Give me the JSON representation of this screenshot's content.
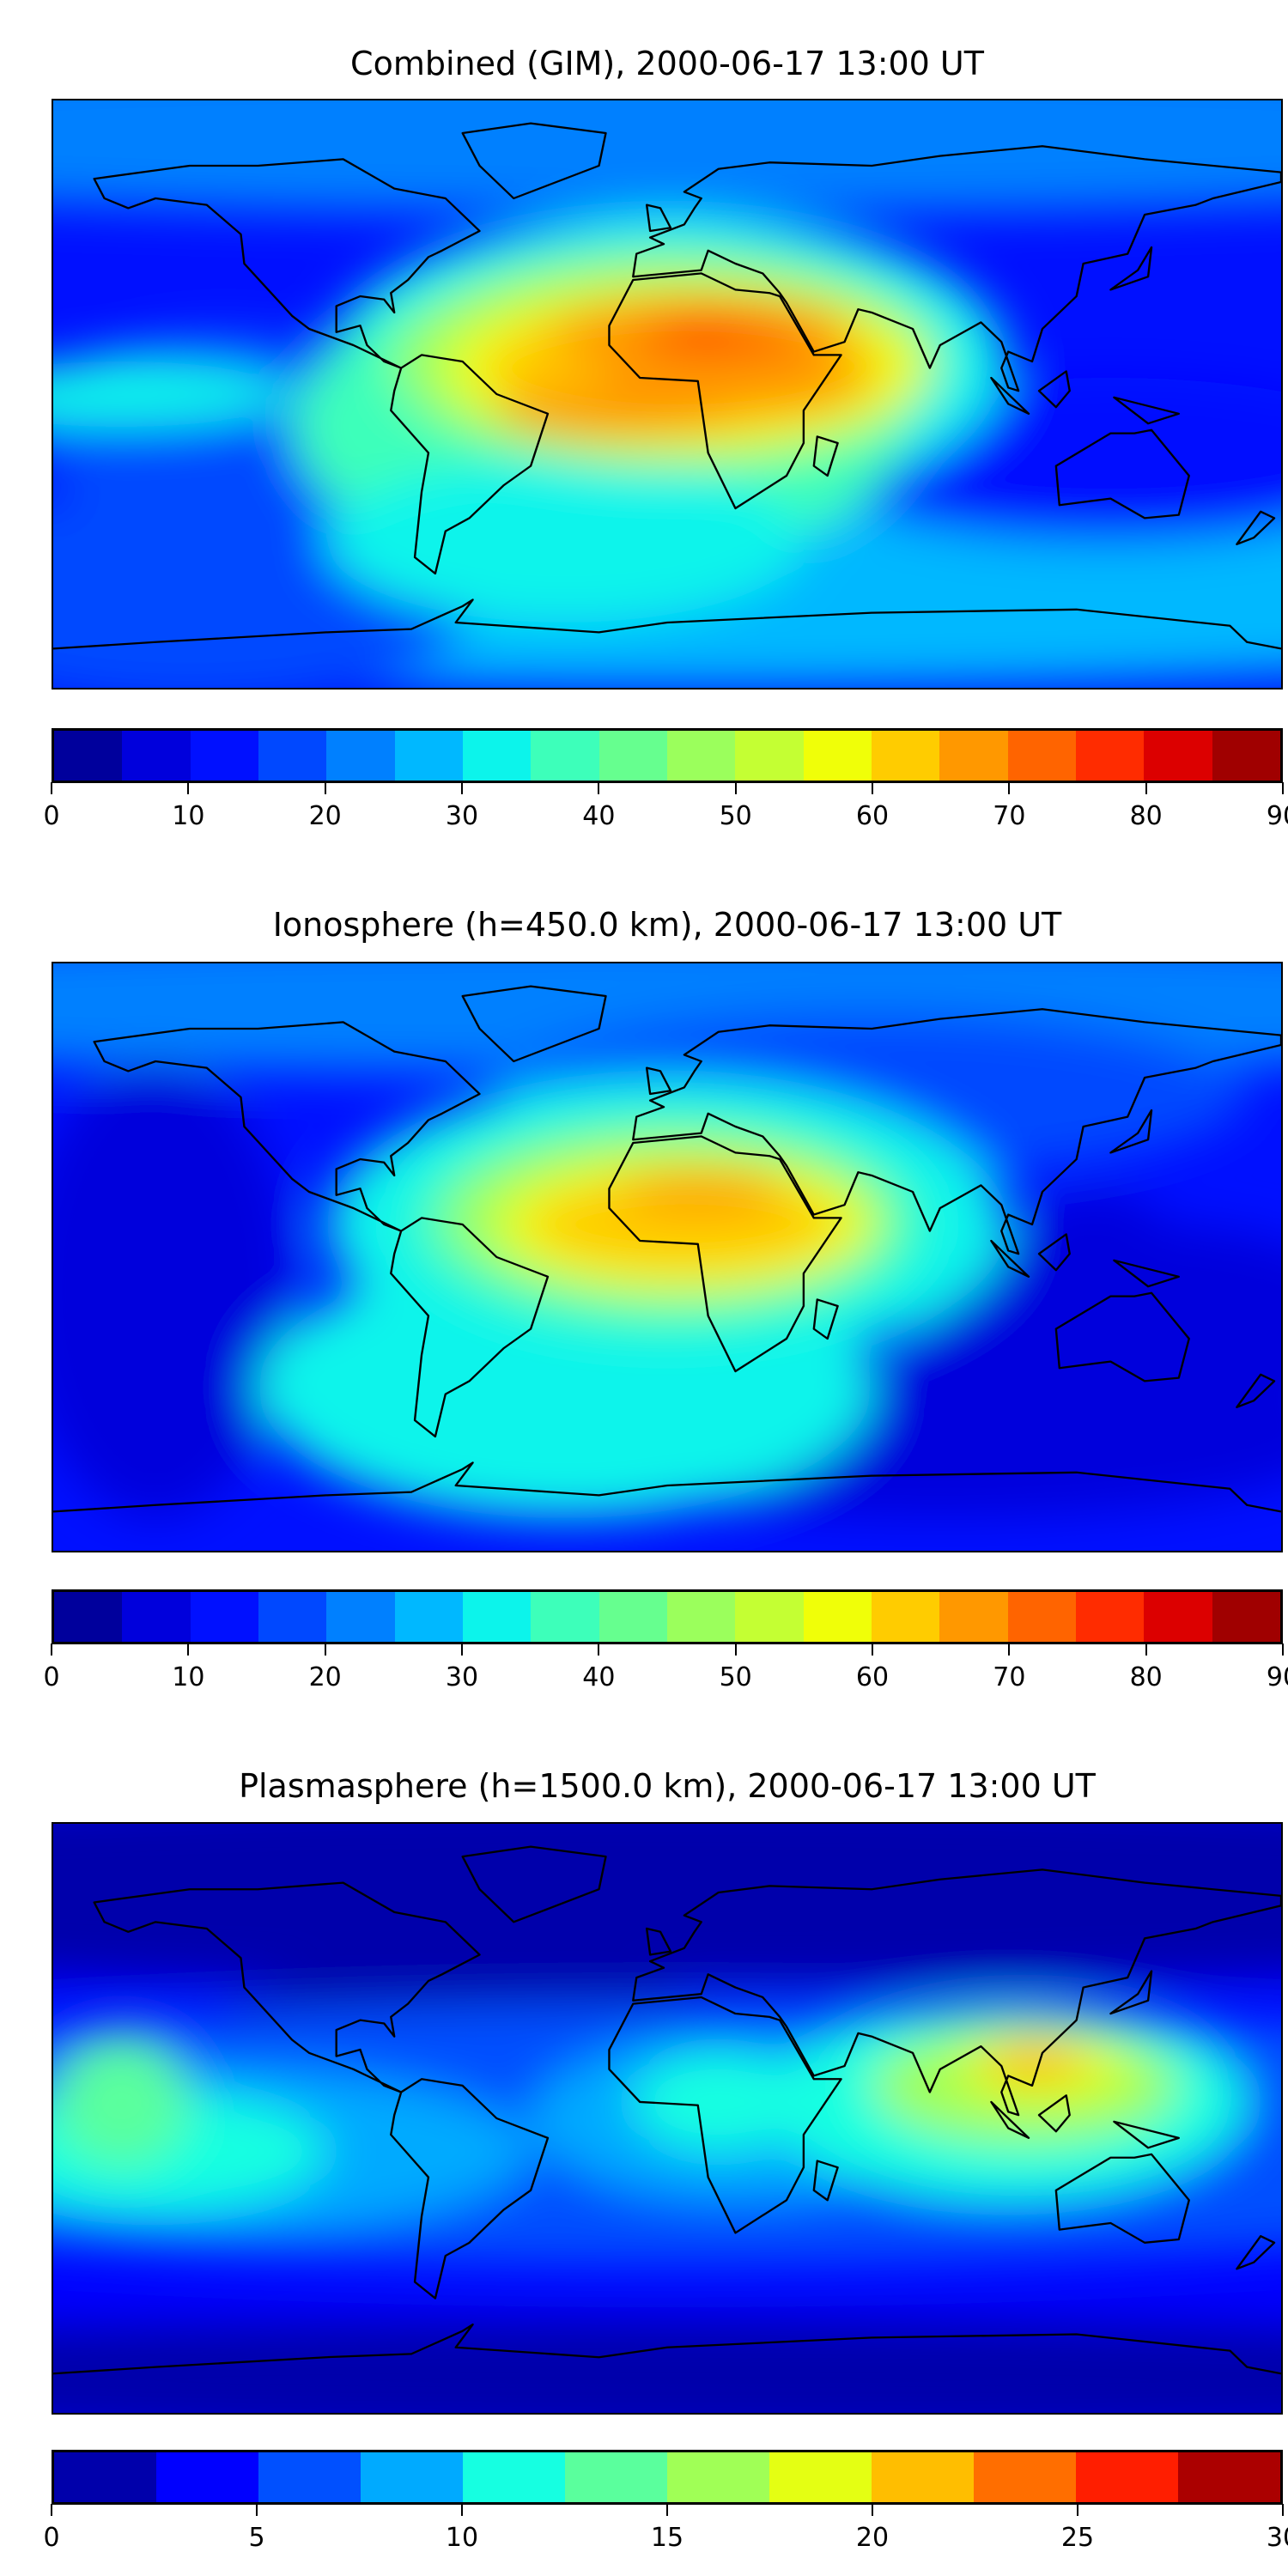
{
  "chart_data": [
    {
      "type": "heatmap",
      "title": "Combined (GIM), 2000-06-17 13:00 UT",
      "projection": "equirectangular world map with coastlines",
      "colorbar": {
        "range": [
          0,
          90
        ],
        "ticks": [
          0,
          10,
          20,
          30,
          40,
          50,
          60,
          70,
          80,
          90
        ],
        "levels": [
          0,
          5,
          10,
          15,
          20,
          25,
          30,
          35,
          40,
          45,
          50,
          55,
          60,
          65,
          70,
          75,
          80,
          85,
          90
        ],
        "colors": [
          "#00009c",
          "#0000dc",
          "#0010ff",
          "#0048ff",
          "#0080ff",
          "#00b8ff",
          "#0cf4eb",
          "#3dffba",
          "#66ff8f",
          "#9bff5c",
          "#c4ff33",
          "#f0ff08",
          "#ffcc00",
          "#ff9800",
          "#ff6400",
          "#ff2c00",
          "#dc0000",
          "#a00000"
        ]
      },
      "features": {
        "max_region": "North Africa / Arabia, ~80",
        "min_region": "South Pacific / Australia, ~10"
      }
    },
    {
      "type": "heatmap",
      "title": "Ionosphere  (h=450.0 km), 2000-06-17 13:00 UT",
      "projection": "equirectangular world map with coastlines",
      "colorbar": {
        "range": [
          0,
          90
        ],
        "ticks": [
          0,
          10,
          20,
          30,
          40,
          50,
          60,
          70,
          80,
          90
        ],
        "levels": [
          0,
          5,
          10,
          15,
          20,
          25,
          30,
          35,
          40,
          45,
          50,
          55,
          60,
          65,
          70,
          75,
          80,
          85,
          90
        ],
        "colors": [
          "#00009c",
          "#0000dc",
          "#0010ff",
          "#0048ff",
          "#0080ff",
          "#00b8ff",
          "#0cf4eb",
          "#3dffba",
          "#66ff8f",
          "#9bff5c",
          "#c4ff33",
          "#f0ff08",
          "#ffcc00",
          "#ff9800",
          "#ff6400",
          "#ff2c00",
          "#dc0000",
          "#a00000"
        ]
      },
      "features": {
        "max_region": "Africa, ~65",
        "min_region": "Pacific / Australia, ~5"
      }
    },
    {
      "type": "heatmap",
      "title": "Plasmasphere (h=1500.0 km), 2000-06-17 13:00 UT",
      "projection": "equirectangular world map with coastlines",
      "colorbar": {
        "range": [
          0,
          30
        ],
        "ticks": [
          0,
          5,
          10,
          15,
          20,
          25,
          30
        ],
        "levels": [
          0,
          2.5,
          5,
          7.5,
          10,
          12.5,
          15,
          17.5,
          20,
          22.5,
          25,
          27.5,
          30
        ],
        "colors": [
          "#0000ab",
          "#0000ff",
          "#0050ff",
          "#00aaff",
          "#16ffe1",
          "#5aff9d",
          "#a0ff56",
          "#e4ff13",
          "#ffbe00",
          "#ff6e00",
          "#ff1e00",
          "#ab0000"
        ]
      },
      "features": {
        "max_region": "Southeast Asia, ~22",
        "min_region": "Northern high latitudes, ~2"
      }
    }
  ]
}
